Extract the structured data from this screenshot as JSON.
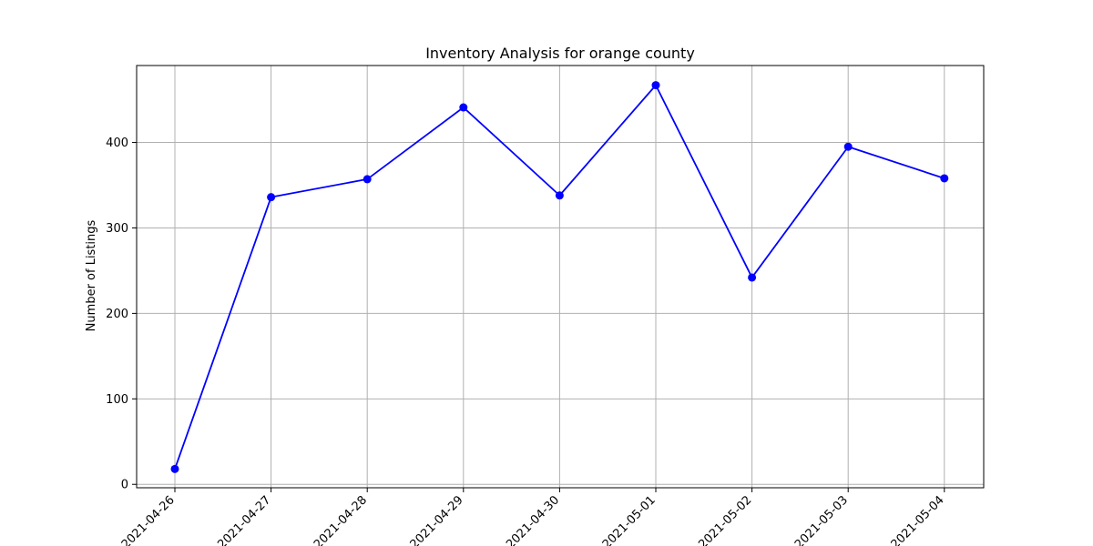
{
  "chart_data": {
    "type": "line",
    "title": "Inventory Analysis for orange county",
    "xlabel": "",
    "ylabel": "Number of Listings",
    "categories": [
      "2021-04-26",
      "2021-04-27",
      "2021-04-28",
      "2021-04-29",
      "2021-04-30",
      "2021-05-01",
      "2021-05-02",
      "2021-05-03",
      "2021-05-04"
    ],
    "series": [
      {
        "values": [
          18,
          336,
          357,
          441,
          338,
          467,
          242,
          395,
          358
        ]
      }
    ],
    "yticks": [
      0,
      100,
      200,
      300,
      400
    ],
    "ylim": [
      -4,
      490
    ],
    "grid": true,
    "line_color": "#0000ff",
    "marker": "circle"
  }
}
